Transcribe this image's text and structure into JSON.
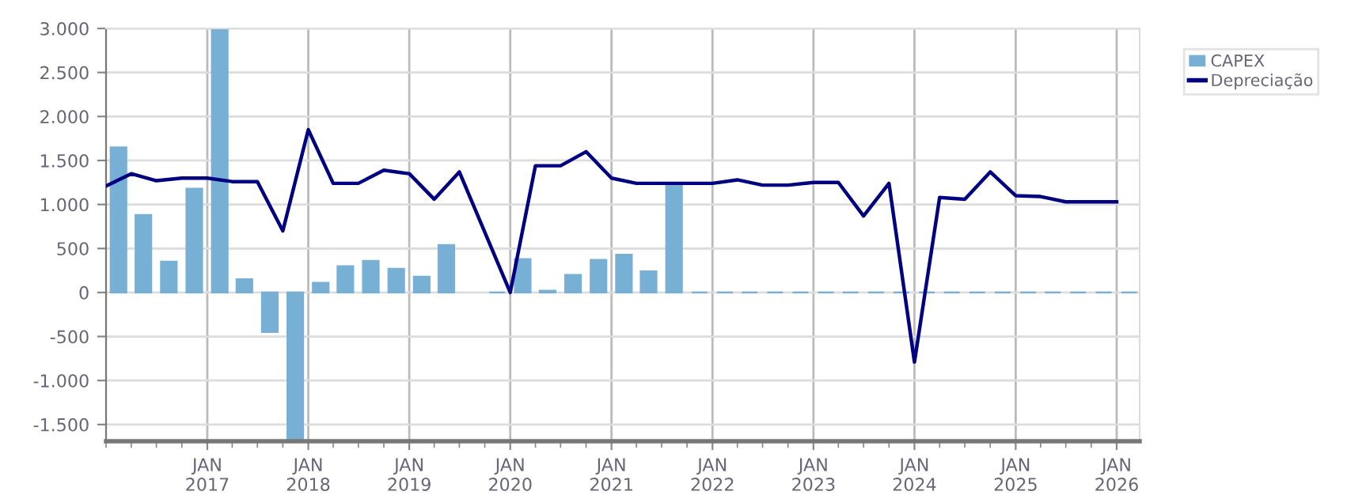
{
  "chart_data": {
    "type": "bar",
    "xlim": [
      "2016-01-01",
      "2026-03-25"
    ],
    "xticks": [
      {
        "value": "2017-01-01",
        "label": "JAN\n2017"
      },
      {
        "value": "2018-01-01",
        "label": "JAN\n2018"
      },
      {
        "value": "2019-01-01",
        "label": "JAN\n2019"
      },
      {
        "value": "2020-01-01",
        "label": "JAN\n2020"
      },
      {
        "value": "2021-01-01",
        "label": "JAN\n2021"
      },
      {
        "value": "2022-01-01",
        "label": "JAN\n2022"
      },
      {
        "value": "2023-01-01",
        "label": "JAN\n2023"
      },
      {
        "value": "2024-01-01",
        "label": "JAN\n2024"
      },
      {
        "value": "2025-01-01",
        "label": "JAN\n2025"
      },
      {
        "value": "2026-01-01",
        "label": "JAN\n2026"
      }
    ],
    "ylim": [
      -1690,
      3000
    ],
    "yticks": [
      {
        "value": -1500,
        "label": "-1.500"
      },
      {
        "value": -1000,
        "label": "-1.000"
      },
      {
        "value": -500,
        "label": "-500"
      },
      {
        "value": 0,
        "label": "0"
      },
      {
        "value": 500,
        "label": "500"
      },
      {
        "value": 1000,
        "label": "1.000"
      },
      {
        "value": 1500,
        "label": "1.500"
      },
      {
        "value": 2000,
        "label": "2.000"
      },
      {
        "value": 2500,
        "label": "2.500"
      },
      {
        "value": 3000,
        "label": "3.000"
      }
    ],
    "grid": true,
    "legend": "top right",
    "series": [
      {
        "name": "CAPEX",
        "color": "#77b0d4",
        "x": [
          "2016-02-15",
          "2016-05-15",
          "2016-08-15",
          "2016-11-15",
          "2017-02-15",
          "2017-05-15",
          "2017-08-15",
          "2017-11-15",
          "2018-02-15",
          "2018-05-15",
          "2018-08-15",
          "2018-11-15",
          "2019-02-15",
          "2019-05-15",
          "2019-08-15",
          "2019-11-15",
          "2020-02-15",
          "2020-05-15",
          "2020-08-15",
          "2020-11-15",
          "2021-02-15",
          "2021-05-15",
          "2021-08-15",
          "2021-11-15",
          "2022-02-15",
          "2022-05-15",
          "2022-08-15",
          "2022-11-15",
          "2023-02-15",
          "2023-05-15",
          "2023-08-15",
          "2023-11-15",
          "2024-02-15",
          "2024-05-15",
          "2024-08-15",
          "2024-11-15",
          "2025-02-15",
          "2025-05-15",
          "2025-08-15",
          "2025-11-15",
          "2026-02-15"
        ],
        "values": [
          1650,
          880,
          350,
          1180,
          3000,
          150,
          -450,
          -1690,
          110,
          300,
          360,
          270,
          180,
          540,
          null,
          0,
          380,
          20,
          200,
          370,
          430,
          240,
          1240,
          0,
          0,
          0,
          0,
          0,
          0,
          0,
          0,
          0,
          0,
          0,
          0,
          0,
          0,
          0,
          0,
          0,
          0
        ]
      },
      {
        "name": "Depreciação",
        "type": "line",
        "color": "#000080",
        "x": [
          "2016-01-01",
          "2016-04-01",
          "2016-07-01",
          "2016-10-01",
          "2017-01-01",
          "2017-04-01",
          "2017-07-01",
          "2017-10-01",
          "2018-01-01",
          "2018-04-01",
          "2018-07-01",
          "2018-10-01",
          "2019-01-01",
          "2019-04-01",
          "2019-07-01",
          "2020-01-01",
          "2020-04-01",
          "2020-07-01",
          "2020-10-01",
          "2021-01-01",
          "2021-04-01",
          "2021-07-01",
          "2021-10-01",
          "2022-01-01",
          "2022-04-01",
          "2022-07-01",
          "2022-10-01",
          "2023-01-01",
          "2023-04-01",
          "2023-07-01",
          "2023-10-01",
          "2024-01-01",
          "2024-04-01",
          "2024-07-01",
          "2024-10-01",
          "2025-01-01",
          "2025-04-01",
          "2025-07-01",
          "2025-10-01",
          "2026-01-01"
        ],
        "values": [
          1210,
          1350,
          1270,
          1300,
          1300,
          1260,
          1260,
          700,
          1850,
          1240,
          1240,
          1390,
          1350,
          1060,
          1370,
          0,
          1440,
          1440,
          1600,
          1300,
          1240,
          1240,
          1240,
          1240,
          1280,
          1220,
          1220,
          1250,
          1250,
          870,
          1240,
          -790,
          1080,
          1060,
          1370,
          1100,
          1090,
          1030,
          1030,
          1030
        ]
      }
    ]
  }
}
